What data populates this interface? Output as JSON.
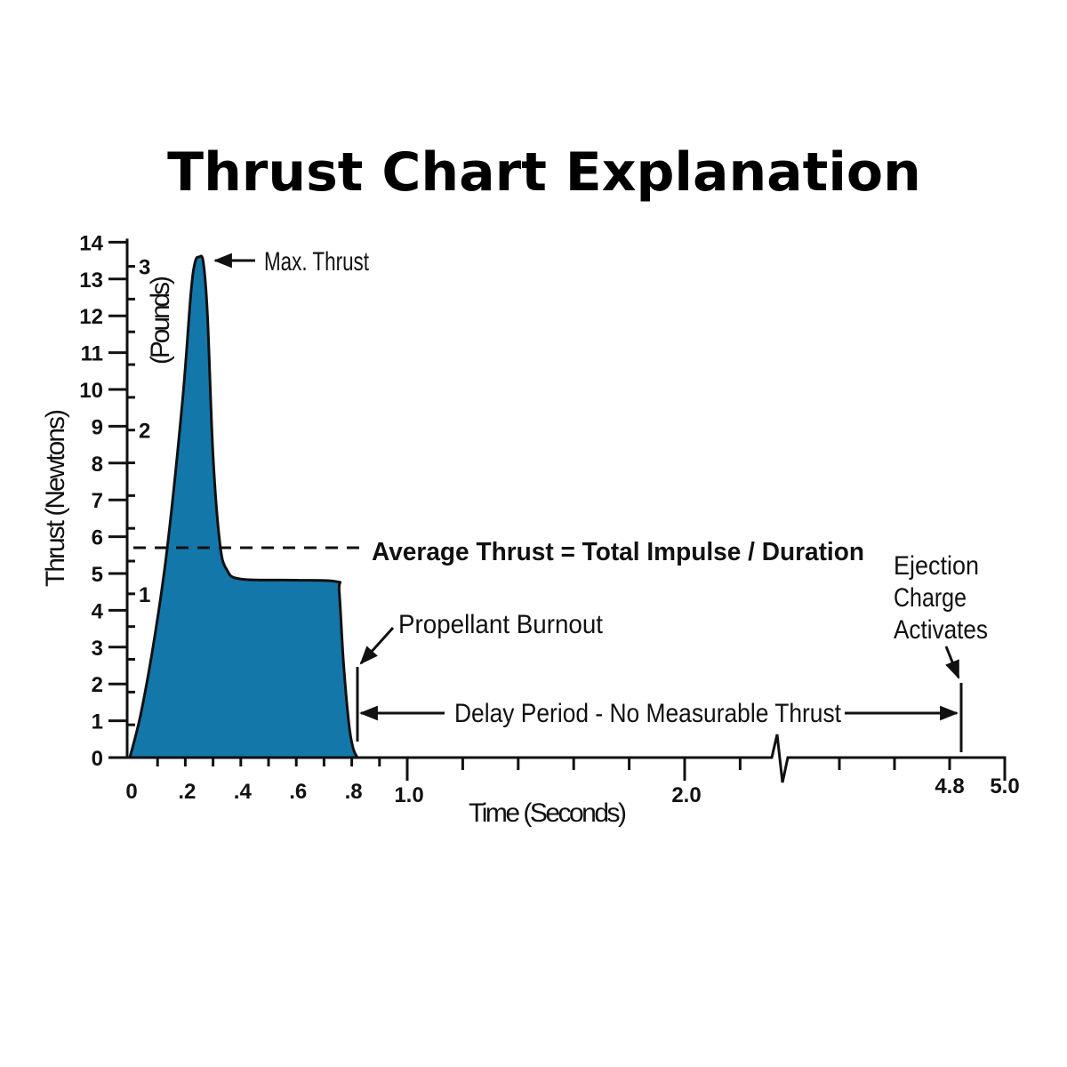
{
  "chart_data": {
    "type": "area",
    "title": "Thrust Chart Explanation",
    "xlabel": "Time (Seconds)",
    "ylabel": "Thrust (Newtons)",
    "y2label": "(Pounds)",
    "xlim": [
      0,
      5.0
    ],
    "ylim": [
      0,
      14
    ],
    "x_axis_break": [
      2.35,
      4.35
    ],
    "x_tick_labels": [
      {
        "value": 0,
        "label": "0"
      },
      {
        "value": 0.2,
        "label": ".2"
      },
      {
        "value": 0.4,
        "label": ".4"
      },
      {
        "value": 0.6,
        "label": ".6"
      },
      {
        "value": 0.8,
        "label": ".8"
      },
      {
        "value": 1.0,
        "label": "1.0"
      },
      {
        "value": 2.0,
        "label": "2.0"
      },
      {
        "value": 4.8,
        "label": "4.8"
      },
      {
        "value": 5.0,
        "label": "5.0"
      }
    ],
    "y_ticks": [
      0,
      1,
      2,
      3,
      4,
      5,
      6,
      7,
      8,
      9,
      10,
      11,
      12,
      13,
      14
    ],
    "y2_ticks": [
      {
        "value": 1,
        "label": "1"
      },
      {
        "value": 2,
        "label": "2"
      },
      {
        "value": 3,
        "label": "3"
      }
    ],
    "grid": false,
    "fill_color": "#1477aa",
    "series": [
      {
        "x": [
          0,
          0.04,
          0.09,
          0.135,
          0.19,
          0.22,
          0.235,
          0.25,
          0.265,
          0.28,
          0.3,
          0.325,
          0.35,
          0.4,
          0.6,
          0.745,
          0.755,
          0.77,
          0.79,
          0.805,
          0.82
        ],
        "y": [
          0,
          1.2,
          3.3,
          5.7,
          9.7,
          12.6,
          13.45,
          13.6,
          13.45,
          12.0,
          8.2,
          5.8,
          5.1,
          4.85,
          4.82,
          4.78,
          4.5,
          2.6,
          0.9,
          0.25,
          0
        ]
      }
    ],
    "average_thrust_N": 5.7,
    "burnout_time_s": 0.82,
    "ejection_time_s": 4.8,
    "annotations": {
      "max_thrust": "Max. Thrust",
      "average": "Average Thrust = Total Impulse / Duration",
      "burnout": "Propellant Burnout",
      "delay": "Delay Period - No Measurable Thrust",
      "ejection": [
        "Ejection",
        "Charge",
        "Activates"
      ]
    }
  }
}
